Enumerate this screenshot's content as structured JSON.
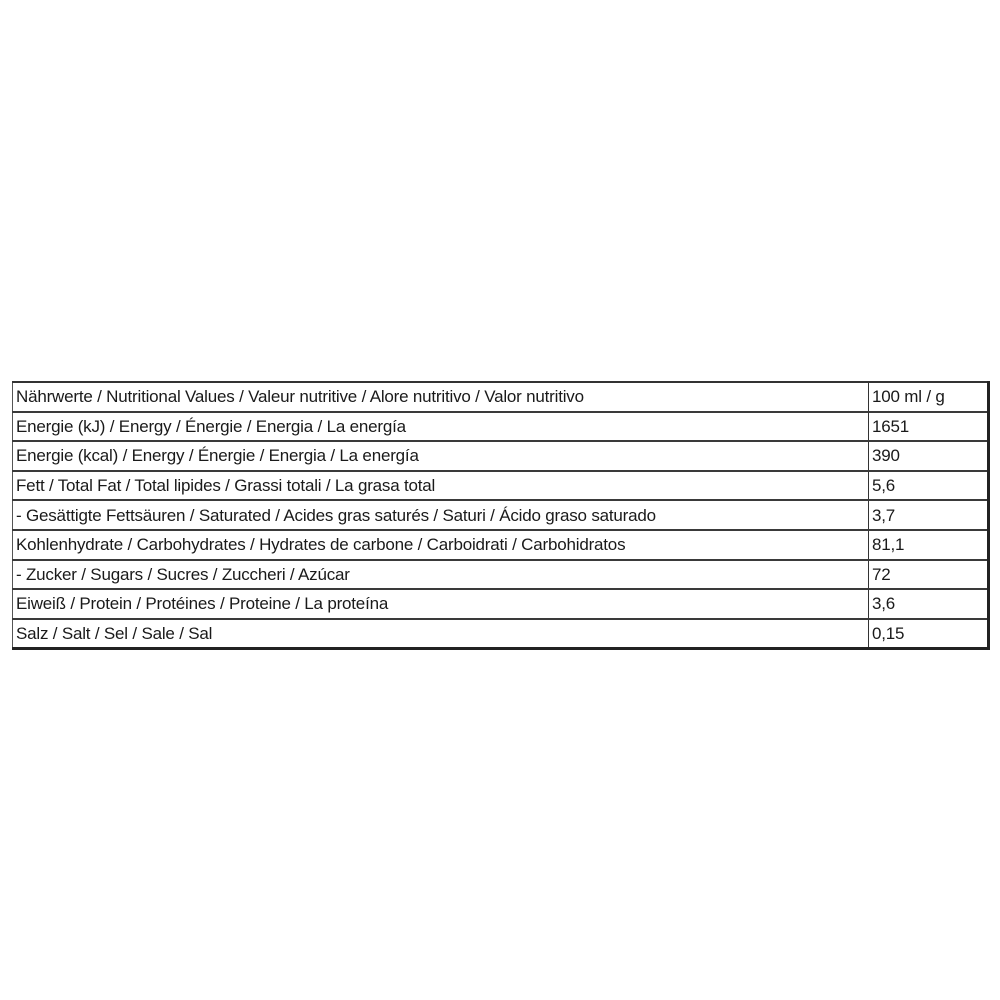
{
  "table": {
    "header": {
      "label": "Nährwerte / Nutritional Values / Valeur nutritive / Alore nutritivo / Valor nutritivo",
      "value": "100 ml / g"
    },
    "rows": [
      {
        "label": "Energie (kJ) / Energy / Énergie / Energia / La energía",
        "value": "1651"
      },
      {
        "label": "Energie (kcal) / Energy / Énergie / Energia / La energía",
        "value": "390"
      },
      {
        "label": "Fett / Total Fat / Total lipides / Grassi totali / La grasa total",
        "value": "5,6"
      },
      {
        "label": "- Gesättigte Fettsäuren / Saturated / Acides gras saturés / Saturi / Ácido graso saturado",
        "value": "3,7"
      },
      {
        "label": "Kohlenhydrate / Carbohydrates / Hydrates de carbone / Carboidrati / Carbohidratos",
        "value": "81,1"
      },
      {
        "label": "- Zucker / Sugars / Sucres / Zuccheri / Azúcar",
        "value": "72"
      },
      {
        "label": "Eiweiß / Protein / Protéines / Proteine / La proteína",
        "value": "3,6"
      },
      {
        "label": "Salz / Salt / Sel / Sale / Sal",
        "value": "0,15"
      }
    ]
  }
}
